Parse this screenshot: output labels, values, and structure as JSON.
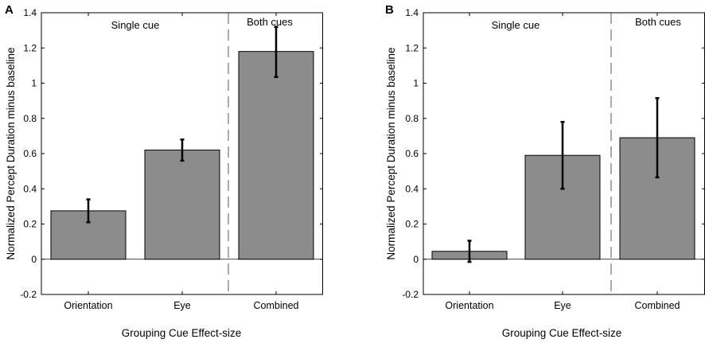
{
  "chart_data": [
    {
      "panel_label": "A",
      "type": "bar",
      "categories": [
        "Orientation",
        "Eye",
        "Combined"
      ],
      "values": [
        0.275,
        0.62,
        1.18
      ],
      "errors_low": [
        0.21,
        0.56,
        1.035
      ],
      "errors_high": [
        0.34,
        0.68,
        1.32
      ],
      "ylim": [
        -0.2,
        1.4
      ],
      "yticks": [
        -0.2,
        0,
        0.2,
        0.4,
        0.6,
        0.8,
        1,
        1.2,
        1.4
      ],
      "ytick_labels": [
        "-0.2",
        "0",
        "0.2",
        "0.4",
        "0.6",
        "0.8",
        "1",
        "1.2",
        "1.4"
      ],
      "xlabel": "Grouping Cue Effect-size",
      "ylabel": "Normalized Percept Duration minus baseline",
      "annotations": [
        "Single cue",
        "Both cues"
      ],
      "separator_after_index": 1,
      "bar_color": "#8c8c8c"
    },
    {
      "panel_label": "B",
      "type": "bar",
      "categories": [
        "Orientation",
        "Eye",
        "Combined"
      ],
      "values": [
        0.045,
        0.59,
        0.69
      ],
      "errors_low": [
        -0.015,
        0.4,
        0.465
      ],
      "errors_high": [
        0.105,
        0.78,
        0.915
      ],
      "ylim": [
        -0.2,
        1.4
      ],
      "yticks": [
        -0.2,
        0,
        0.2,
        0.4,
        0.6,
        0.8,
        1,
        1.2,
        1.4
      ],
      "ytick_labels": [
        "-0.2",
        "0",
        "0.2",
        "0.4",
        "0.6",
        "0.8",
        "1",
        "1.2",
        "1.4"
      ],
      "xlabel": "Grouping Cue Effect-size",
      "ylabel": "Normalized Percept Duration minus baseline",
      "annotations": [
        "Single cue",
        "Both cues"
      ],
      "separator_after_index": 1,
      "bar_color": "#8c8c8c"
    }
  ]
}
